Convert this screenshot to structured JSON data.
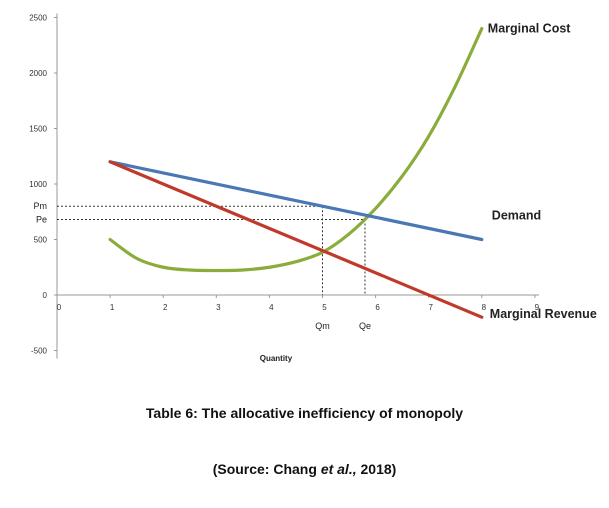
{
  "chart_data": {
    "type": "line",
    "xlabel": "Quantity",
    "xlim": [
      0,
      9
    ],
    "ylim": [
      -500,
      2500
    ],
    "x_ticks": [
      "0",
      "1",
      "2",
      "3",
      "4",
      "5",
      "6",
      "7",
      "8",
      "9"
    ],
    "y_ticks": [
      "-500",
      "0",
      "500",
      "1000",
      "1500",
      "2000",
      "2500"
    ],
    "series": [
      {
        "name": "Marginal Cost",
        "color": "#8aac3a",
        "x": [
          1,
          1.5,
          2,
          2.5,
          3,
          3.5,
          4,
          4.5,
          5,
          5.5,
          6,
          6.5,
          7,
          7.5,
          8
        ],
        "y": [
          500,
          330,
          250,
          225,
          220,
          225,
          250,
          300,
          385,
          550,
          780,
          1070,
          1430,
          1880,
          2400
        ]
      },
      {
        "name": "Demand",
        "color": "#4a78b5",
        "x": [
          1,
          8
        ],
        "y": [
          1200,
          500
        ]
      },
      {
        "name": "Marginal Revenue",
        "color": "#c0392b",
        "x": [
          1,
          8
        ],
        "y": [
          1200,
          -200
        ]
      }
    ],
    "annotations": [
      {
        "name": "Pm",
        "y": 800
      },
      {
        "name": "Pe",
        "y": 680
      },
      {
        "name": "Qm",
        "x": 5
      },
      {
        "name": "Qe",
        "x": 5.8
      }
    ],
    "grid": false
  },
  "caption": {
    "title": "Table 6: The allocative inefficiency of monopoly",
    "source_prefix": "(Source: Chang ",
    "source_italic": "et al.,",
    "source_suffix": " 2018)"
  }
}
